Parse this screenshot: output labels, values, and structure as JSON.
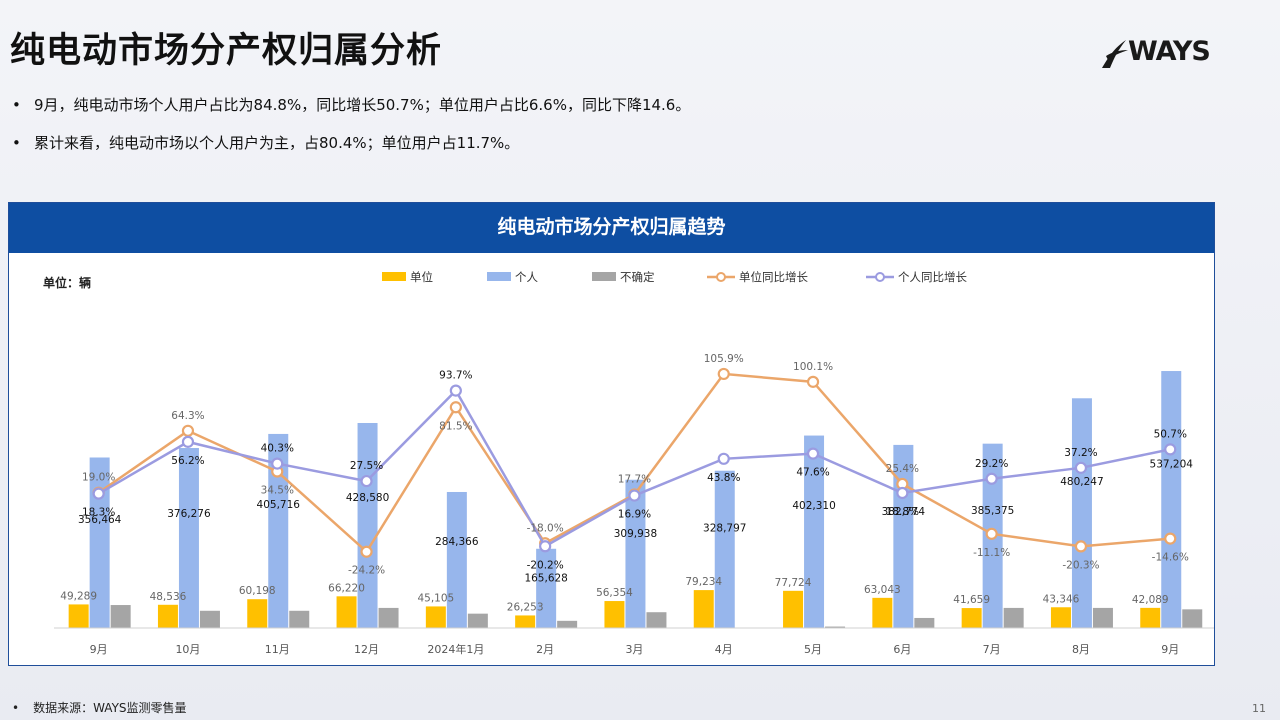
{
  "page": {
    "title": "纯电动市场分产权归属分析",
    "logo_text": "WAYS",
    "bullets": [
      "9月，纯电动市场个人用户占比为84.8%，同比增长50.7%；单位用户占比6.6%，同比下降14.6。",
      "累计来看，纯电动市场以个人用户为主，占80.4%；单位用户占11.7%。"
    ],
    "footer_source": "数据来源：WAYS监测零售量",
    "page_number": "11"
  },
  "chart_data": {
    "type": "bar",
    "title": "纯电动市场分产权归属趋势",
    "unit_label": "单位：辆",
    "categories": [
      "9月",
      "10月",
      "11月",
      "12月",
      "2024年1月",
      "2月",
      "3月",
      "4月",
      "5月",
      "6月",
      "7月",
      "8月",
      "9月"
    ],
    "series": [
      {
        "name": "单位",
        "type": "bar",
        "color": "#ffc000",
        "values": [
          49289,
          48536,
          60198,
          66220,
          45105,
          26253,
          56354,
          79234,
          77724,
          63043,
          41659,
          43346,
          42089
        ]
      },
      {
        "name": "个人",
        "type": "bar",
        "color": "#97b6ec",
        "values": [
          356464,
          376276,
          405716,
          428580,
          284366,
          165628,
          309938,
          328797,
          402310,
          382774,
          385375,
          480247,
          537204
        ]
      },
      {
        "name": "不确定",
        "type": "bar",
        "color": "#a5a5a5",
        "values": [
          null,
          null,
          null,
          null,
          null,
          null,
          null,
          null,
          null,
          null,
          null,
          null,
          null
        ]
      },
      {
        "name": "单位同比增长",
        "type": "line",
        "color": "#eba66a",
        "values": [
          19.0,
          64.3,
          34.5,
          -24.2,
          81.5,
          -18.0,
          17.7,
          105.9,
          100.1,
          25.4,
          -11.1,
          -20.3,
          -14.6
        ]
      },
      {
        "name": "个人同比增长",
        "type": "line",
        "color": "#9b9be0",
        "values": [
          18.3,
          56.2,
          40.3,
          27.5,
          93.7,
          -20.2,
          16.9,
          43.8,
          47.6,
          18.8,
          29.2,
          37.2,
          50.7
        ]
      }
    ],
    "bar_labels": {
      "单位": [
        "49,289",
        "48,536",
        "60,198",
        "66,220",
        "45,105",
        "26,253",
        "56,354",
        "79,234",
        "77,724",
        "63,043",
        "41,659",
        "43,346",
        "42,089"
      ],
      "个人": [
        "356,464",
        "376,276",
        "405,716",
        "428,580",
        "284,366",
        "165,628",
        "309,938",
        "328,797",
        "402,310",
        "382,774",
        "385,375",
        "480,247",
        "537,204"
      ]
    },
    "line_labels": {
      "单位同比增长": [
        "19.0%",
        "64.3%",
        "34.5%",
        "-24.2%",
        "81.5%",
        "-18.0%",
        "17.7%",
        "105.9%",
        "100.1%",
        "25.4%",
        "-11.1%",
        "-20.3%",
        "-14.6%"
      ],
      "个人同比增长": [
        "18.3%",
        "56.2%",
        "40.3%",
        "27.5%",
        "93.7%",
        "-20.2%",
        "16.9%",
        "43.8%",
        "47.6%",
        "18.8%",
        "29.2%",
        "37.2%",
        "50.7%"
      ]
    },
    "uncertain_bar_levels": [
      0.08,
      0.06,
      0.06,
      0.07,
      0.05,
      0.025,
      0.055,
      0,
      0.005,
      0.035,
      0.07,
      0.07,
      0.065
    ],
    "bar_ylim": [
      0,
      600000
    ],
    "line_ylim": [
      -80,
      130
    ],
    "legend_position": "top-center",
    "grid": false
  }
}
